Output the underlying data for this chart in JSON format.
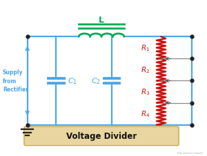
{
  "bg_color": "#ffffff",
  "wire_color": "#4da6e8",
  "resistor_color": "#cc1111",
  "inductor_color": "#00aa55",
  "supply_text": "Supply\nfrom\nRectifier",
  "voltage_divider_text": "Voltage Divider",
  "vd_box_color": "#e8d5a0",
  "vd_border_color": "#c8a84a",
  "watermark": "Electronics Coach",
  "r_labels": [
    "$R_1$",
    "$R_2$",
    "$R_3$",
    "$R_4$"
  ],
  "c1_label": "$C_1$",
  "c2_label": "$C_2$",
  "l_label": "L"
}
